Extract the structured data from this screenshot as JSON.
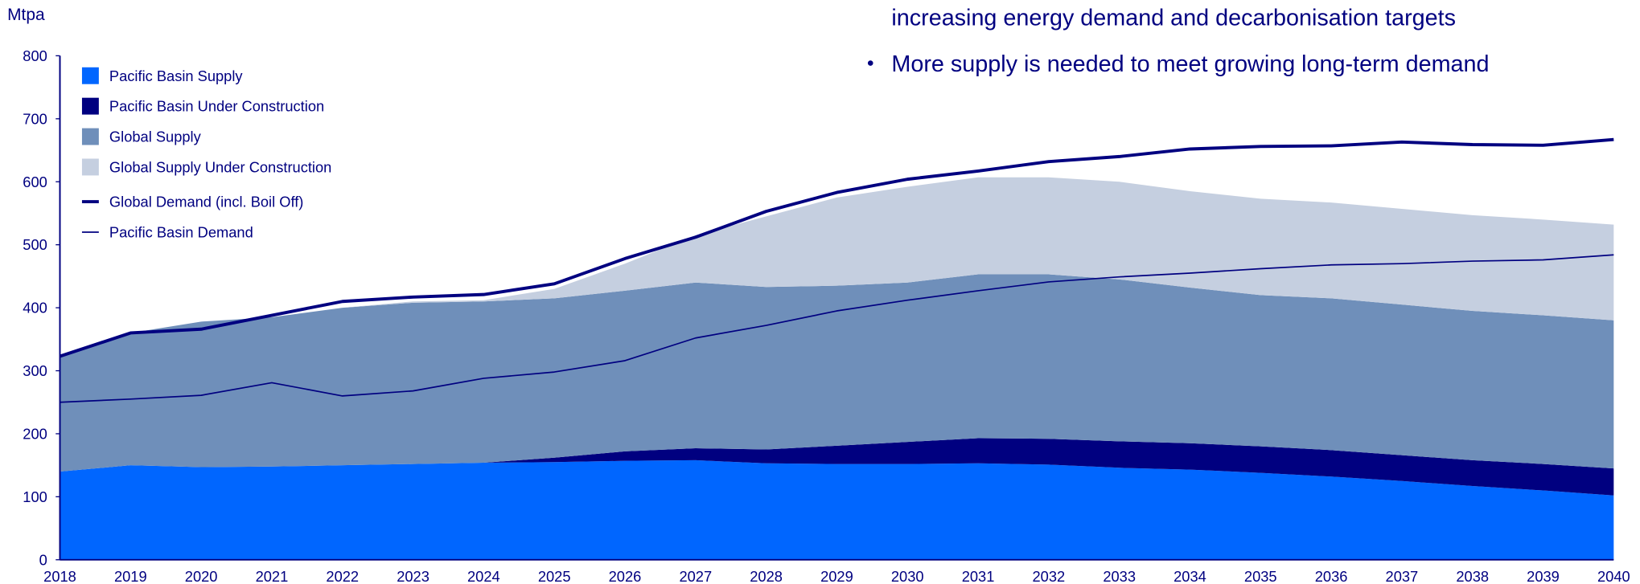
{
  "chart_data": {
    "type": "stacked_area",
    "y_label": "Mtpa",
    "notes": [
      "increasing energy demand and decarbonisation targets",
      "More supply is needed to meet growing long-term demand"
    ],
    "categories": [
      "2018",
      "2019",
      "2020",
      "2021",
      "2022",
      "2023",
      "2024",
      "2025",
      "2026",
      "2027",
      "2028",
      "2029",
      "2030",
      "2031",
      "2032",
      "2033",
      "2034",
      "2035",
      "2036",
      "2037",
      "2038",
      "2039",
      "2040"
    ],
    "ylim": [
      0,
      800
    ],
    "yticks": [
      0,
      100,
      200,
      300,
      400,
      500,
      600,
      700,
      800
    ],
    "series": [
      {
        "name": "Pacific Basin Supply",
        "color": "#0066ff",
        "values": [
          140,
          150,
          147,
          148,
          150,
          152,
          154,
          155,
          157,
          158,
          153,
          152,
          152,
          153,
          151,
          146,
          143,
          138,
          132,
          125,
          117,
          110,
          102
        ]
      },
      {
        "name": "Pacific Basin Under Construction",
        "color": "#000080",
        "values": [
          0,
          0,
          0,
          0,
          0,
          0,
          0,
          7,
          15,
          19,
          22,
          29,
          35,
          40,
          41,
          42,
          42,
          42,
          42,
          41,
          41,
          42,
          43
        ]
      },
      {
        "name": "Global Supply",
        "color": "#6f8fba",
        "values": [
          185,
          210,
          231,
          237,
          250,
          256,
          256,
          253,
          255,
          263,
          258,
          254,
          253,
          260,
          261,
          257,
          247,
          240,
          241,
          239,
          237,
          236,
          235
        ]
      },
      {
        "name": "Global Supply Under Construction",
        "color": "#c5cfe0",
        "values": [
          0,
          0,
          0,
          0,
          0,
          2,
          2,
          15,
          43,
          75,
          112,
          140,
          152,
          154,
          154,
          155,
          153,
          153,
          152,
          152,
          152,
          152,
          152
        ]
      },
      {
        "name": "Global Demand (incl. Boil Off)",
        "color": "#000080",
        "type": "line",
        "width": 3,
        "values": [
          323,
          360,
          366,
          388,
          410,
          417,
          421,
          438,
          478,
          512,
          553,
          583,
          604,
          617,
          632,
          640,
          652,
          656,
          657,
          663,
          659,
          658,
          667
        ]
      },
      {
        "name": "Pacific Basin Demand",
        "color": "#000080",
        "type": "line",
        "width": 1.3,
        "values": [
          250,
          255,
          261,
          281,
          260,
          268,
          288,
          298,
          316,
          352,
          372,
          395,
          412,
          427,
          441,
          449,
          455,
          462,
          468,
          470,
          474,
          476,
          484
        ]
      }
    ]
  }
}
